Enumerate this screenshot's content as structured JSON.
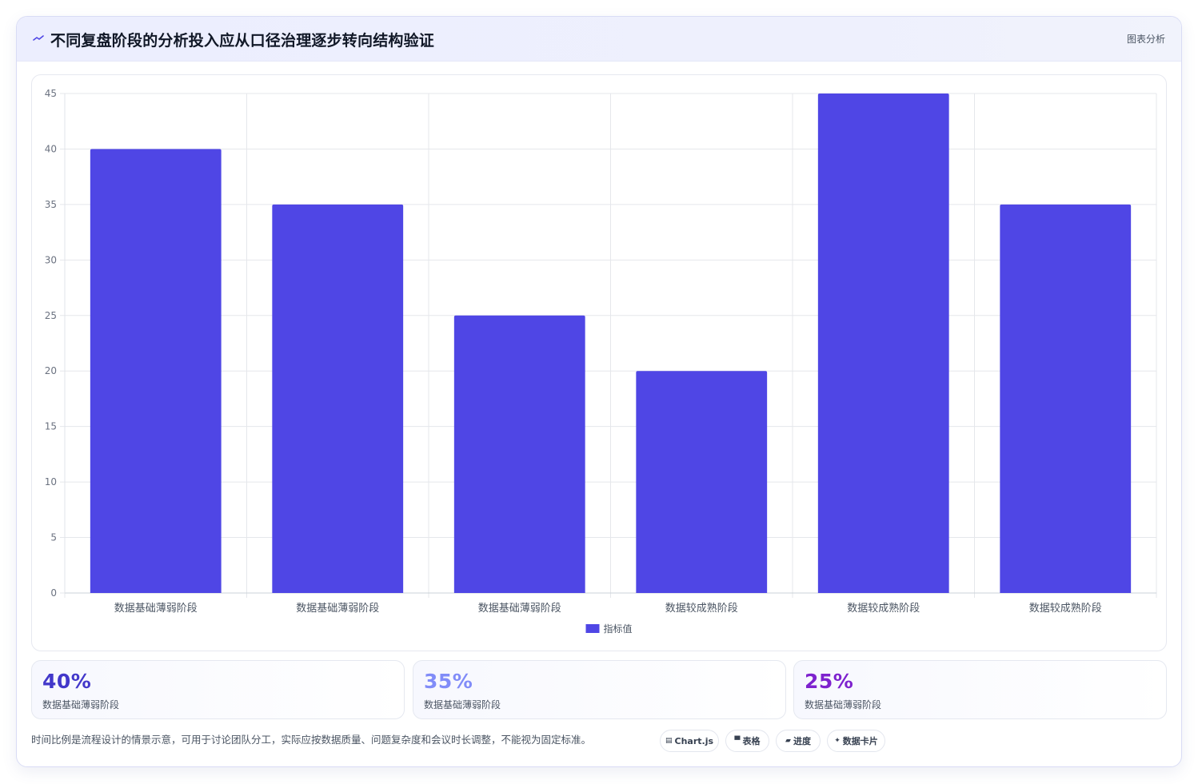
{
  "header": {
    "title": "不同复盘阶段的分析投入应从口径治理逐步转向结构验证",
    "tag": "图表分析",
    "icon": "chart-line-icon",
    "accent": "#4f46e5"
  },
  "chart_data": {
    "type": "bar",
    "categories": [
      "数据基础薄弱阶段",
      "数据基础薄弱阶段",
      "数据基础薄弱阶段",
      "数据较成熟阶段",
      "数据较成熟阶段",
      "数据较成熟阶段"
    ],
    "series": [
      {
        "name": "指标值",
        "values": [
          40,
          35,
          25,
          20,
          45,
          35
        ],
        "color": "#4f46e5"
      }
    ],
    "ylim": [
      0,
      45
    ],
    "yticks": [
      0,
      5,
      10,
      15,
      20,
      25,
      30,
      35,
      40,
      45
    ],
    "grid": true,
    "legend": "bottom"
  },
  "stats": [
    {
      "value": "40%",
      "label": "数据基础薄弱阶段",
      "color": "#4338ca"
    },
    {
      "value": "35%",
      "label": "数据基础薄弱阶段",
      "color": "#818cf8"
    },
    {
      "value": "25%",
      "label": "数据基础薄弱阶段",
      "color": "#7e22ce"
    }
  ],
  "footnote": "时间比例是流程设计的情景示意，可用于讨论团队分工，实际应按数据质量、问题复杂度和会议时长调整，不能视为固定标准。",
  "pills": [
    {
      "icon": "table-chart-icon",
      "glyph": "▤",
      "label": "Chart.js"
    },
    {
      "icon": "table-icon",
      "glyph": "▀",
      "label": "表格"
    },
    {
      "icon": "progress-icon",
      "glyph": "▰",
      "label": "进度"
    },
    {
      "icon": "sparkle-icon",
      "glyph": "✦",
      "label": "数据卡片"
    }
  ]
}
